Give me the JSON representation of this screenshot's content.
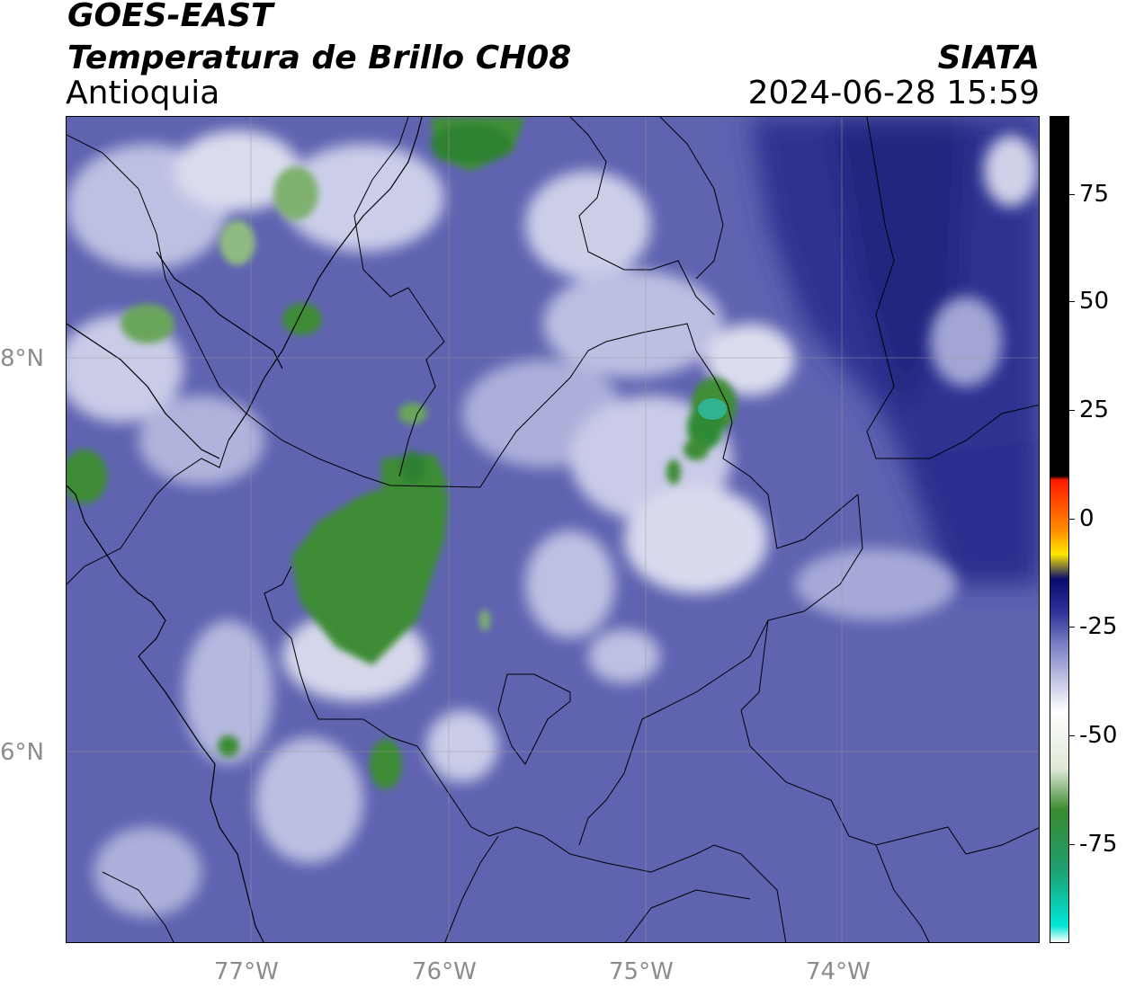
{
  "header": {
    "satellite": "GOES-EAST",
    "product": "Temperatura de Brillo CH08",
    "region": "Antioquia",
    "agency": "SIATA",
    "datetime": "2024-06-28 15:59"
  },
  "map": {
    "x_ticks": [
      "77°W",
      "76°W",
      "75°W",
      "74°W"
    ],
    "y_ticks": [
      "8°N",
      "6°N"
    ],
    "base_color": "#5f63b0"
  },
  "colorbar": {
    "ticks": [
      "75",
      "50",
      "25",
      "0",
      "-25",
      "-50",
      "-75"
    ],
    "stops": [
      {
        "color": "#ffffff"
      },
      {
        "color": "#00e6d6"
      },
      {
        "color": "#1f9e6e"
      },
      {
        "color": "#3a8a2e"
      },
      {
        "color": "#dfe8d6"
      },
      {
        "color": "#ffffff"
      },
      {
        "color": "#7c80c4"
      },
      {
        "color": "#2e3296"
      },
      {
        "color": "#0a0a6e"
      },
      {
        "color": "#ffe800"
      },
      {
        "color": "#ff8a00"
      },
      {
        "color": "#ff1a00"
      },
      {
        "color": "#000000"
      }
    ]
  }
}
